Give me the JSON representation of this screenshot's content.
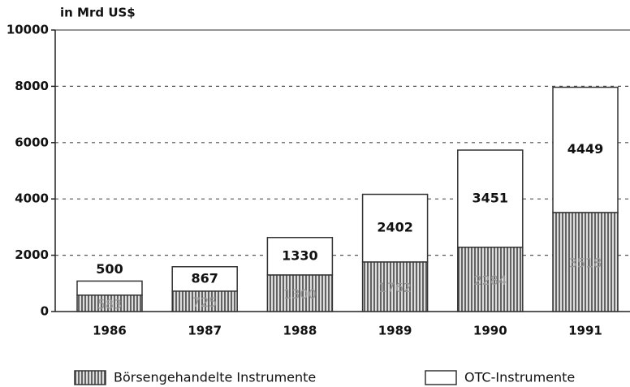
{
  "chart_data": {
    "type": "stacked_bar",
    "y_label": "in Mrd US$",
    "categories": [
      "1986",
      "1987",
      "1988",
      "1989",
      "1990",
      "1991"
    ],
    "series": [
      {
        "name": "Börsengehandelte Instrumente",
        "color": "hatch",
        "values": [
          583,
          725,
          1300,
          1762,
          2284,
          3518
        ]
      },
      {
        "name": "OTC-Instrumente",
        "color": "#ffffff",
        "values": [
          500,
          867,
          1330,
          2402,
          3451,
          4449
        ]
      }
    ],
    "ylim": [
      0,
      10000
    ],
    "yticks": [
      0,
      2000,
      4000,
      6000,
      8000,
      10000
    ],
    "grid": true
  }
}
